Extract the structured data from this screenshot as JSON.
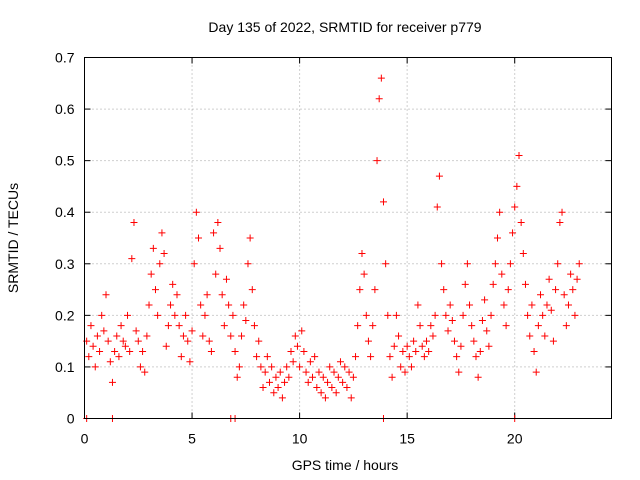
{
  "chart_data": {
    "type": "scatter",
    "title": "Day 135 of 2022, SRMTID for receiver p779",
    "xlabel": "GPS time / hours",
    "ylabel": "SRMTID / TECUs",
    "xlim": [
      0,
      24.5
    ],
    "ylim": [
      0,
      0.7
    ],
    "xticks": [
      0,
      5,
      10,
      15,
      20
    ],
    "xtick_labels": [
      "0",
      "5",
      "10",
      "15",
      "20"
    ],
    "yticks": [
      0,
      0.1,
      0.2,
      0.3,
      0.4,
      0.5,
      0.6,
      0.7
    ],
    "ytick_labels": [
      "0",
      "0.1",
      "0.2",
      "0.3",
      "0.4",
      "0.5",
      "0.6",
      "0.7"
    ],
    "grid": true,
    "marker": "+",
    "color": "#ff0000",
    "series": [
      {
        "name": "SRMTID",
        "points": [
          [
            0.1,
            0.15
          ],
          [
            0.2,
            0.12
          ],
          [
            0.3,
            0.18
          ],
          [
            0.4,
            0.14
          ],
          [
            0.5,
            0.1
          ],
          [
            0.6,
            0.16
          ],
          [
            0.7,
            0.13
          ],
          [
            0.8,
            0.2
          ],
          [
            0.9,
            0.17
          ],
          [
            1.0,
            0.24
          ],
          [
            1.1,
            0.15
          ],
          [
            1.2,
            0.11
          ],
          [
            1.3,
            0.07
          ],
          [
            1.4,
            0.13
          ],
          [
            1.5,
            0.16
          ],
          [
            1.6,
            0.12
          ],
          [
            1.7,
            0.18
          ],
          [
            1.8,
            0.15
          ],
          [
            1.9,
            0.14
          ],
          [
            2.0,
            0.2
          ],
          [
            2.1,
            0.13
          ],
          [
            2.2,
            0.31
          ],
          [
            2.3,
            0.38
          ],
          [
            2.4,
            0.17
          ],
          [
            2.5,
            0.15
          ],
          [
            2.6,
            0.1
          ],
          [
            2.7,
            0.13
          ],
          [
            2.8,
            0.09
          ],
          [
            2.9,
            0.16
          ],
          [
            3.0,
            0.22
          ],
          [
            3.1,
            0.28
          ],
          [
            3.2,
            0.33
          ],
          [
            3.3,
            0.25
          ],
          [
            3.4,
            0.2
          ],
          [
            3.5,
            0.3
          ],
          [
            3.6,
            0.36
          ],
          [
            3.7,
            0.32
          ],
          [
            3.8,
            0.14
          ],
          [
            3.9,
            0.18
          ],
          [
            4.0,
            0.22
          ],
          [
            4.1,
            0.26
          ],
          [
            4.2,
            0.2
          ],
          [
            4.3,
            0.24
          ],
          [
            4.4,
            0.18
          ],
          [
            4.5,
            0.12
          ],
          [
            4.6,
            0.16
          ],
          [
            4.7,
            0.2
          ],
          [
            4.8,
            0.15
          ],
          [
            4.9,
            0.11
          ],
          [
            5.0,
            0.17
          ],
          [
            5.1,
            0.3
          ],
          [
            5.2,
            0.4
          ],
          [
            5.3,
            0.35
          ],
          [
            5.4,
            0.22
          ],
          [
            5.5,
            0.16
          ],
          [
            5.6,
            0.2
          ],
          [
            5.7,
            0.24
          ],
          [
            5.8,
            0.15
          ],
          [
            5.9,
            0.13
          ],
          [
            6.0,
            0.36
          ],
          [
            6.1,
            0.28
          ],
          [
            6.2,
            0.38
          ],
          [
            6.3,
            0.33
          ],
          [
            6.4,
            0.24
          ],
          [
            6.5,
            0.18
          ],
          [
            6.6,
            0.27
          ],
          [
            6.7,
            0.22
          ],
          [
            6.8,
            0.16
          ],
          [
            6.9,
            0.2
          ],
          [
            7.0,
            0.13
          ],
          [
            7.1,
            0.08
          ],
          [
            7.2,
            0.1
          ],
          [
            7.3,
            0.16
          ],
          [
            7.4,
            0.22
          ],
          [
            7.5,
            0.19
          ],
          [
            7.6,
            0.3
          ],
          [
            7.7,
            0.35
          ],
          [
            7.8,
            0.25
          ],
          [
            7.9,
            0.18
          ],
          [
            8.0,
            0.12
          ],
          [
            8.1,
            0.15
          ],
          [
            8.2,
            0.1
          ],
          [
            8.3,
            0.06
          ],
          [
            8.4,
            0.09
          ],
          [
            8.5,
            0.12
          ],
          [
            8.6,
            0.07
          ],
          [
            8.7,
            0.1
          ],
          [
            8.8,
            0.05
          ],
          [
            8.9,
            0.08
          ],
          [
            9.0,
            0.06
          ],
          [
            9.1,
            0.09
          ],
          [
            9.2,
            0.04
          ],
          [
            9.3,
            0.07
          ],
          [
            9.4,
            0.1
          ],
          [
            9.5,
            0.08
          ],
          [
            9.6,
            0.13
          ],
          [
            9.7,
            0.11
          ],
          [
            9.8,
            0.16
          ],
          [
            9.9,
            0.14
          ],
          [
            10.0,
            0.1
          ],
          [
            10.1,
            0.17
          ],
          [
            10.2,
            0.13
          ],
          [
            10.3,
            0.09
          ],
          [
            10.4,
            0.07
          ],
          [
            10.5,
            0.11
          ],
          [
            10.6,
            0.08
          ],
          [
            10.7,
            0.12
          ],
          [
            10.8,
            0.06
          ],
          [
            10.9,
            0.09
          ],
          [
            11.0,
            0.05
          ],
          [
            11.1,
            0.08
          ],
          [
            11.2,
            0.04
          ],
          [
            11.3,
            0.07
          ],
          [
            11.4,
            0.1
          ],
          [
            11.5,
            0.06
          ],
          [
            11.6,
            0.09
          ],
          [
            11.7,
            0.05
          ],
          [
            11.8,
            0.08
          ],
          [
            11.9,
            0.11
          ],
          [
            12.0,
            0.07
          ],
          [
            12.1,
            0.1
          ],
          [
            12.2,
            0.06
          ],
          [
            12.3,
            0.09
          ],
          [
            12.4,
            0.04
          ],
          [
            12.5,
            0.08
          ],
          [
            12.6,
            0.12
          ],
          [
            12.7,
            0.18
          ],
          [
            12.8,
            0.25
          ],
          [
            12.9,
            0.32
          ],
          [
            13.0,
            0.28
          ],
          [
            13.1,
            0.2
          ],
          [
            13.2,
            0.15
          ],
          [
            13.3,
            0.12
          ],
          [
            13.4,
            0.18
          ],
          [
            13.5,
            0.25
          ],
          [
            13.6,
            0.5
          ],
          [
            13.7,
            0.62
          ],
          [
            13.8,
            0.66
          ],
          [
            13.9,
            0.42
          ],
          [
            14.0,
            0.3
          ],
          [
            14.1,
            0.2
          ],
          [
            14.2,
            0.12
          ],
          [
            14.3,
            0.08
          ],
          [
            14.4,
            0.14
          ],
          [
            14.5,
            0.2
          ],
          [
            14.6,
            0.16
          ],
          [
            14.7,
            0.1
          ],
          [
            14.8,
            0.13
          ],
          [
            14.9,
            0.09
          ],
          [
            15.0,
            0.14
          ],
          [
            15.1,
            0.12
          ],
          [
            15.2,
            0.1
          ],
          [
            15.3,
            0.15
          ],
          [
            15.4,
            0.13
          ],
          [
            15.5,
            0.22
          ],
          [
            15.6,
            0.18
          ],
          [
            15.7,
            0.14
          ],
          [
            15.8,
            0.12
          ],
          [
            15.9,
            0.15
          ],
          [
            16.0,
            0.13
          ],
          [
            16.1,
            0.18
          ],
          [
            16.2,
            0.16
          ],
          [
            16.3,
            0.2
          ],
          [
            16.4,
            0.41
          ],
          [
            16.5,
            0.47
          ],
          [
            16.6,
            0.3
          ],
          [
            16.7,
            0.25
          ],
          [
            16.8,
            0.2
          ],
          [
            16.9,
            0.17
          ],
          [
            17.0,
            0.22
          ],
          [
            17.1,
            0.19
          ],
          [
            17.2,
            0.15
          ],
          [
            17.3,
            0.12
          ],
          [
            17.4,
            0.09
          ],
          [
            17.5,
            0.14
          ],
          [
            17.6,
            0.2
          ],
          [
            17.7,
            0.26
          ],
          [
            17.8,
            0.3
          ],
          [
            17.9,
            0.22
          ],
          [
            18.0,
            0.18
          ],
          [
            18.1,
            0.15
          ],
          [
            18.2,
            0.12
          ],
          [
            18.3,
            0.08
          ],
          [
            18.4,
            0.13
          ],
          [
            18.5,
            0.19
          ],
          [
            18.6,
            0.23
          ],
          [
            18.7,
            0.17
          ],
          [
            18.8,
            0.14
          ],
          [
            18.9,
            0.2
          ],
          [
            19.0,
            0.26
          ],
          [
            19.1,
            0.3
          ],
          [
            19.2,
            0.35
          ],
          [
            19.3,
            0.4
          ],
          [
            19.4,
            0.28
          ],
          [
            19.5,
            0.22
          ],
          [
            19.6,
            0.18
          ],
          [
            19.7,
            0.25
          ],
          [
            19.8,
            0.3
          ],
          [
            19.9,
            0.36
          ],
          [
            20.0,
            0.41
          ],
          [
            20.1,
            0.45
          ],
          [
            20.2,
            0.51
          ],
          [
            20.3,
            0.38
          ],
          [
            20.4,
            0.32
          ],
          [
            20.5,
            0.26
          ],
          [
            20.6,
            0.2
          ],
          [
            20.7,
            0.16
          ],
          [
            20.8,
            0.22
          ],
          [
            20.9,
            0.13
          ],
          [
            21.0,
            0.09
          ],
          [
            21.1,
            0.18
          ],
          [
            21.2,
            0.24
          ],
          [
            21.3,
            0.2
          ],
          [
            21.4,
            0.16
          ],
          [
            21.5,
            0.22
          ],
          [
            21.6,
            0.27
          ],
          [
            21.7,
            0.21
          ],
          [
            21.8,
            0.15
          ],
          [
            21.9,
            0.25
          ],
          [
            22.0,
            0.3
          ],
          [
            22.1,
            0.38
          ],
          [
            22.2,
            0.4
          ],
          [
            22.3,
            0.24
          ],
          [
            22.4,
            0.18
          ],
          [
            22.5,
            0.22
          ],
          [
            22.6,
            0.28
          ],
          [
            22.7,
            0.25
          ],
          [
            22.8,
            0.2
          ],
          [
            22.9,
            0.27
          ],
          [
            23.0,
            0.3
          ],
          [
            0.1,
            0.0
          ],
          [
            1.3,
            0.0
          ],
          [
            6.8,
            0.0
          ],
          [
            7.0,
            0.0
          ],
          [
            13.9,
            0.0
          ],
          [
            20.0,
            0.0
          ]
        ]
      }
    ]
  }
}
